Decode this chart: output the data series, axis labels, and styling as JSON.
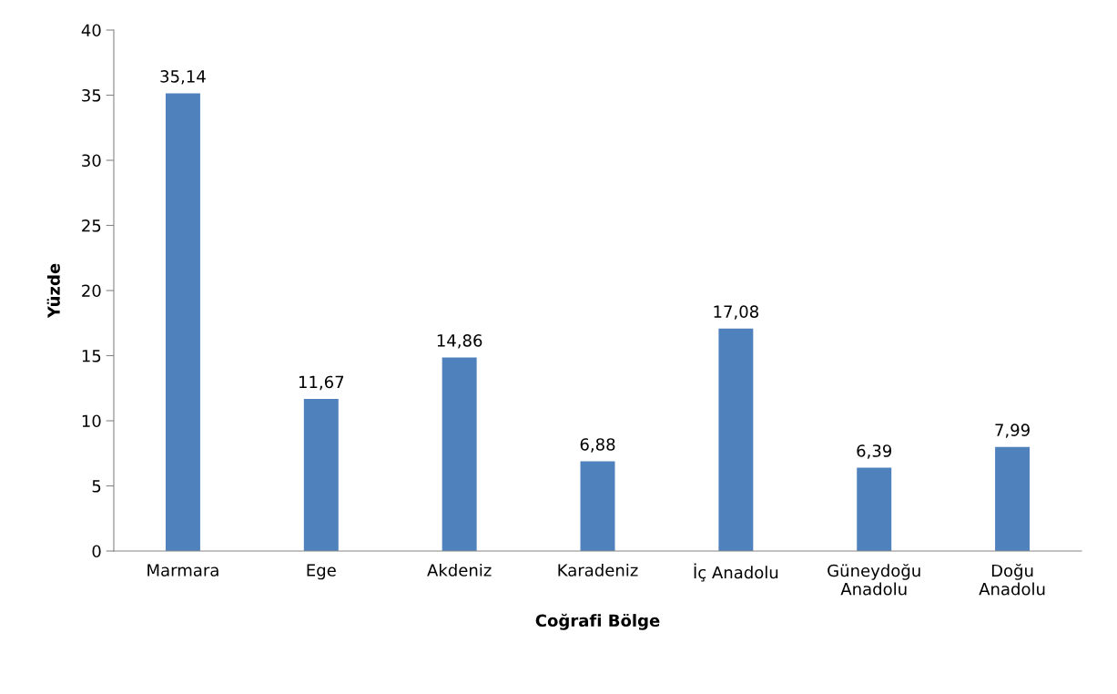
{
  "chart_data": {
    "type": "bar",
    "xlabel": "Coğrafi Bölge",
    "ylabel": "Yüzde",
    "categories": [
      "Marmara",
      "Ege",
      "Akdeniz",
      "Karadeniz",
      "İç Anadolu",
      "Güneydoğu\nAnadolu",
      "Doğu\nAnadolu"
    ],
    "values": [
      35.14,
      11.67,
      14.86,
      6.88,
      17.08,
      6.39,
      7.99
    ],
    "value_labels": [
      "35,14",
      "11,67",
      "14,86",
      "6,88",
      "17,08",
      "6,39",
      "7,99"
    ],
    "color": "#4f81bd",
    "ylim": [
      0,
      40
    ],
    "yticks": [
      0,
      5,
      10,
      15,
      20,
      25,
      30,
      35,
      40
    ],
    "grid": false
  }
}
